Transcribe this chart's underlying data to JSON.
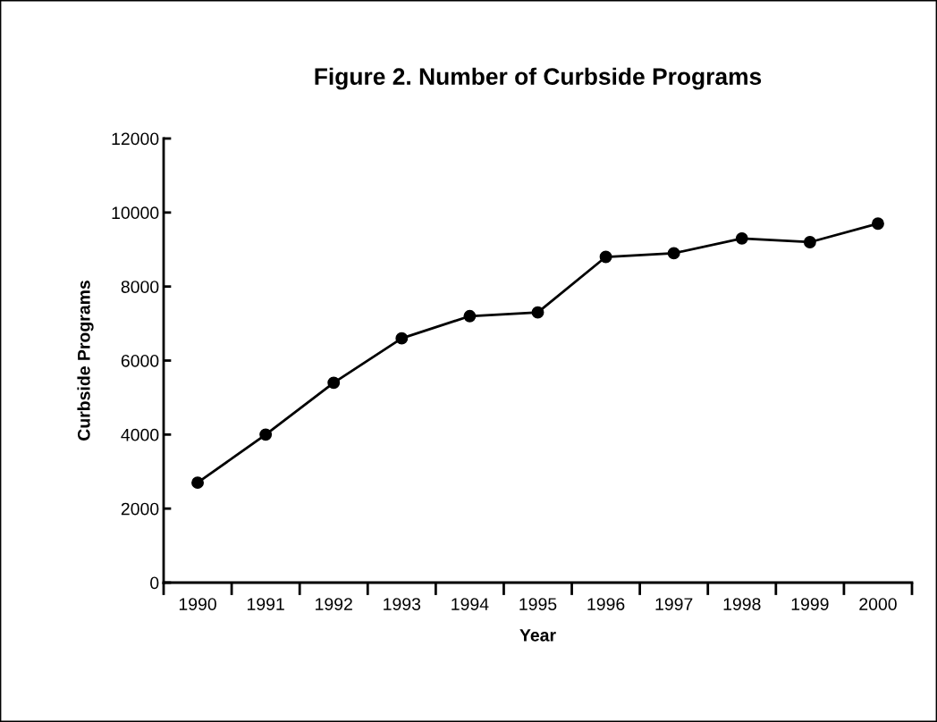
{
  "chart_data": {
    "type": "line",
    "title": "Figure 2. Number of Curbside Programs",
    "xlabel": "Year",
    "ylabel": "Curbside Programs",
    "categories": [
      "1990",
      "1991",
      "1992",
      "1993",
      "1994",
      "1995",
      "1996",
      "1997",
      "1998",
      "1999",
      "2000"
    ],
    "series": [
      {
        "color": "#000000",
        "values": [
          2700,
          4000,
          5400,
          6600,
          7200,
          7300,
          8800,
          8900,
          9300,
          9200,
          9700
        ]
      }
    ],
    "ylim": [
      0,
      12000
    ],
    "yticks": [
      0,
      2000,
      4000,
      6000,
      8000,
      10000,
      12000
    ],
    "grid": false,
    "marker": "circle",
    "line_style": "solid"
  }
}
